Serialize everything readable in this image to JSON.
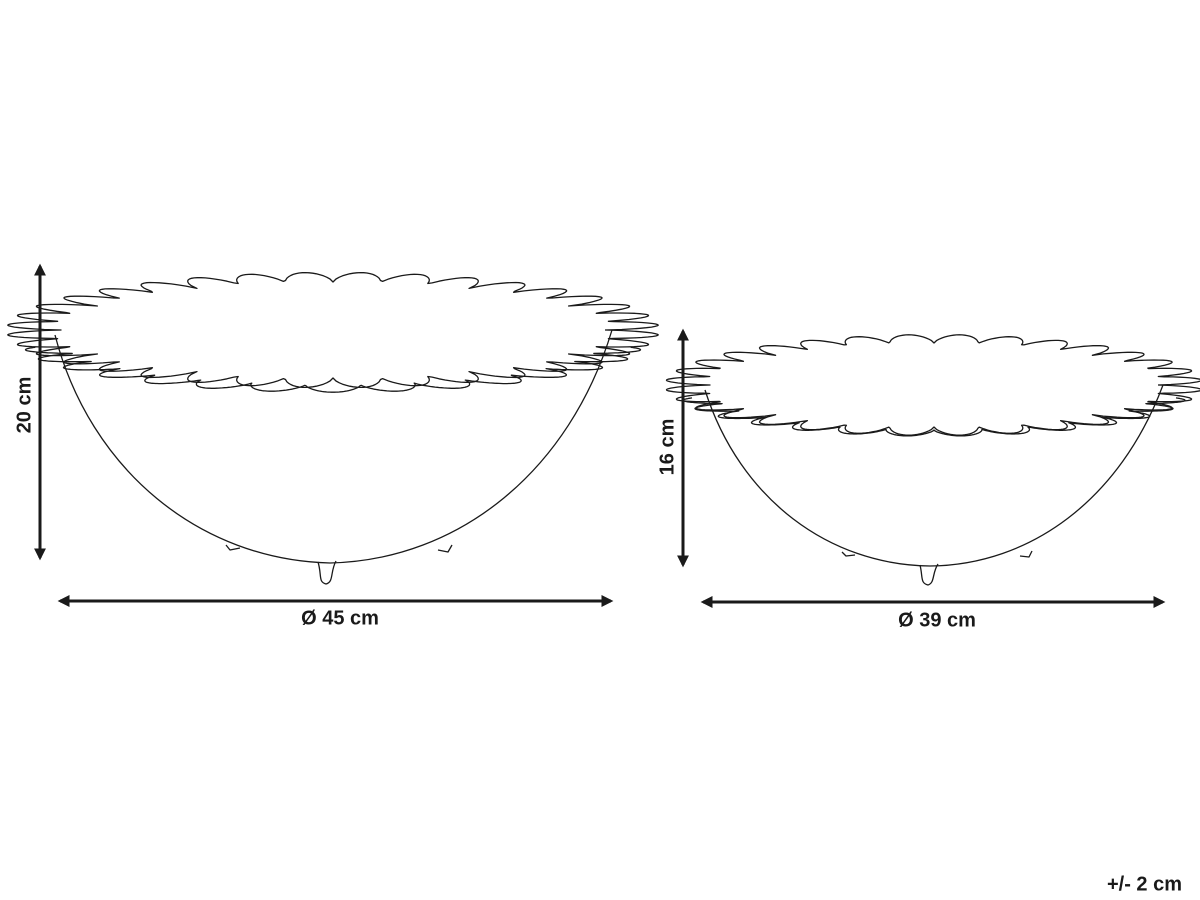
{
  "bowls": [
    {
      "height": "20 cm",
      "diameter": "Ø 45 cm"
    },
    {
      "height": "16 cm",
      "diameter": "Ø 39 cm"
    }
  ],
  "tolerance": "+/- 2 cm"
}
